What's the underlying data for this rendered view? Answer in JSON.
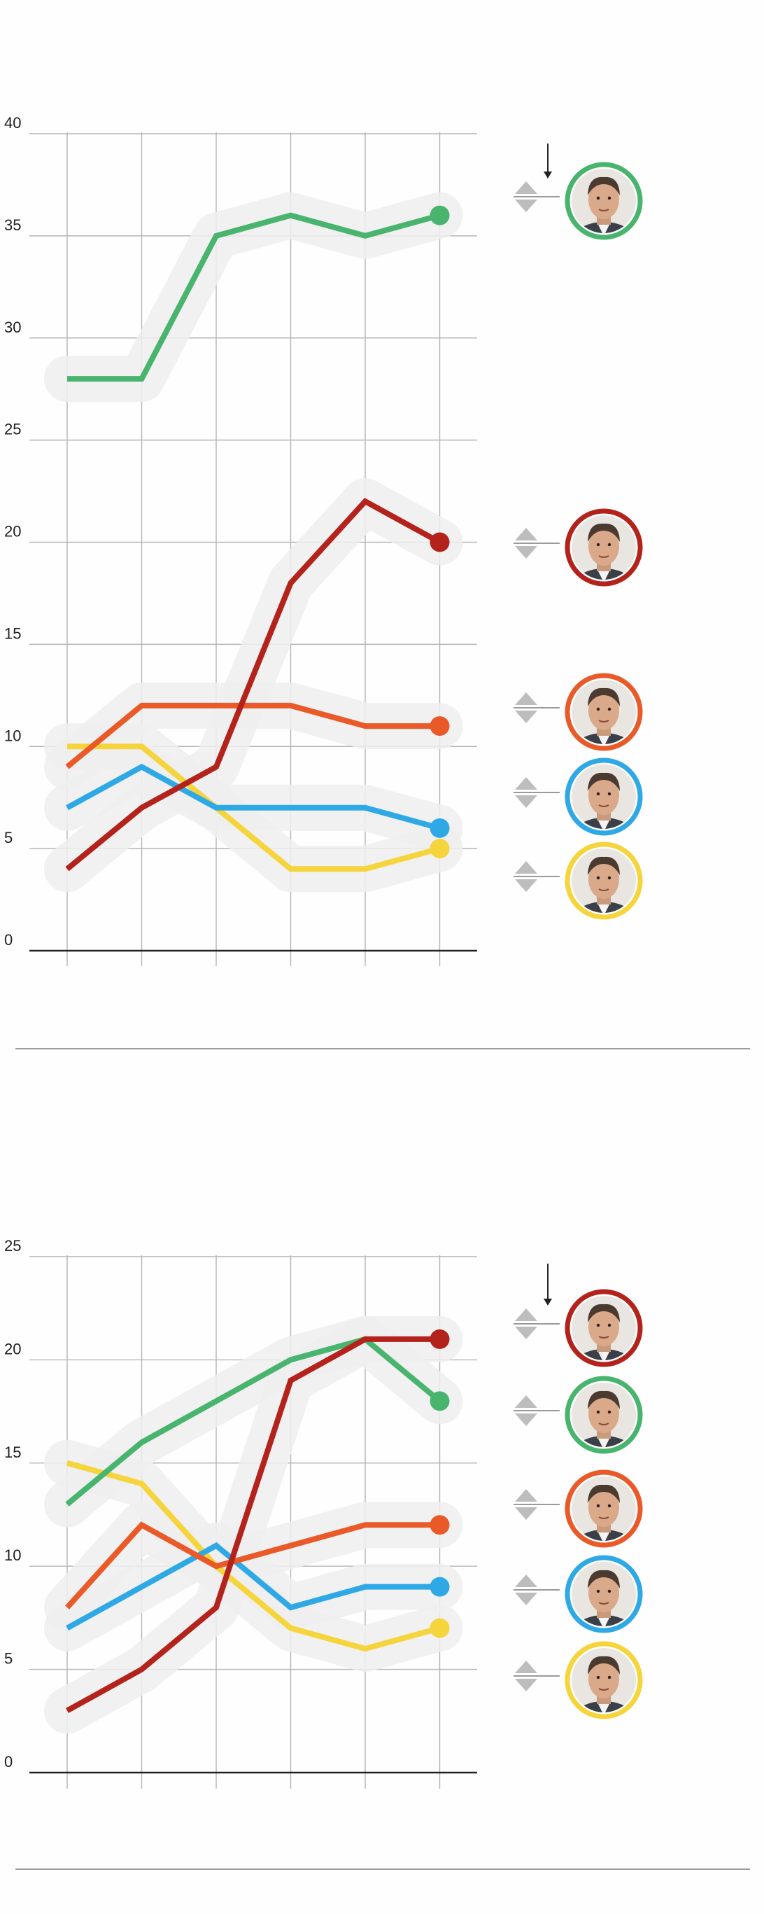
{
  "colors": {
    "green": "#48b46e",
    "red": "#b4221c",
    "orange": "#ea5a29",
    "blue": "#2ea9e6",
    "yellow": "#f5d43c",
    "grid": "#b5b5b5",
    "axis": "#222222",
    "halo": "#efefef",
    "arrow": "#bdbdbd"
  },
  "chart_data": [
    {
      "type": "line",
      "title": "",
      "xlabel": "",
      "ylabel": "",
      "x": [
        1,
        2,
        3,
        4,
        5,
        6
      ],
      "ylim": [
        0,
        40
      ],
      "yticks": [
        0,
        5,
        10,
        15,
        20,
        25,
        30,
        35,
        40
      ],
      "grid": true,
      "series": [
        {
          "color": "green",
          "icon": "candidate-green-portrait",
          "values": [
            28,
            28,
            35,
            36,
            35,
            36
          ]
        },
        {
          "color": "red",
          "icon": "candidate-red-portrait",
          "values": [
            4,
            7,
            9,
            18,
            22,
            20
          ]
        },
        {
          "color": "orange",
          "icon": "candidate-orange-portrait",
          "values": [
            9,
            12,
            12,
            12,
            11,
            11
          ]
        },
        {
          "color": "blue",
          "icon": "candidate-blue-portrait",
          "values": [
            7,
            9,
            7,
            7,
            7,
            6
          ]
        },
        {
          "color": "yellow",
          "icon": "candidate-yellow-portrait",
          "values": [
            10,
            10,
            7,
            4,
            4,
            5
          ]
        }
      ],
      "legend_placement": "right",
      "legend_order": [
        "green",
        "red",
        "orange",
        "blue",
        "yellow"
      ],
      "sort_arrow_above": "green"
    },
    {
      "type": "line",
      "title": "",
      "xlabel": "",
      "ylabel": "",
      "x": [
        1,
        2,
        3,
        4,
        5,
        6
      ],
      "ylim": [
        0,
        25
      ],
      "yticks": [
        0,
        5,
        10,
        15,
        20,
        25
      ],
      "grid": true,
      "series": [
        {
          "color": "red",
          "icon": "candidate-red-portrait",
          "values": [
            3,
            5,
            8,
            19,
            21,
            21
          ]
        },
        {
          "color": "green",
          "icon": "candidate-green-portrait",
          "values": [
            13,
            16,
            18,
            20,
            21,
            18
          ]
        },
        {
          "color": "orange",
          "icon": "candidate-orange-portrait",
          "values": [
            8,
            12,
            10,
            11,
            12,
            12
          ]
        },
        {
          "color": "blue",
          "icon": "candidate-blue-portrait",
          "values": [
            7,
            9,
            11,
            8,
            9,
            9
          ]
        },
        {
          "color": "yellow",
          "icon": "candidate-yellow-portrait",
          "values": [
            15,
            14,
            10,
            7,
            6,
            7
          ]
        }
      ],
      "legend_placement": "right",
      "legend_order": [
        "red",
        "green",
        "orange",
        "blue",
        "yellow"
      ],
      "sort_arrow_above": "red"
    }
  ]
}
